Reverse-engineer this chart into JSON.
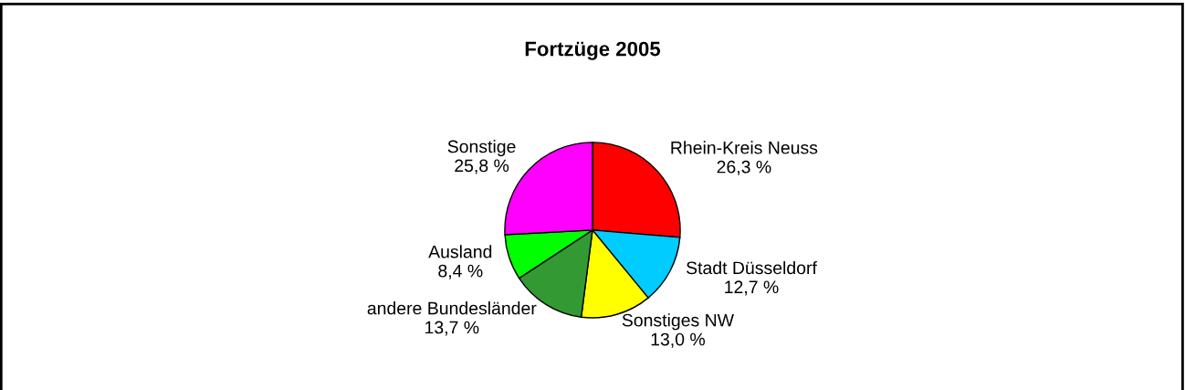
{
  "chart_data": {
    "type": "pie",
    "title": "Fortzüge 2005",
    "categories": [
      "Rhein-Kreis Neuss",
      "Stadt Düsseldorf",
      "Sonstiges NW",
      "andere Bundesländer",
      "Ausland",
      "Sonstige"
    ],
    "values": [
      26.3,
      12.7,
      13.0,
      13.7,
      8.4,
      25.8
    ],
    "value_labels": [
      "26,3 %",
      "12,7 %",
      "13,0 %",
      "13,7 %",
      "8,4 %",
      "25,8 %"
    ],
    "colors": [
      "#ff0000",
      "#00ccff",
      "#ffff00",
      "#339933",
      "#00ff00",
      "#ff00ff"
    ],
    "legend": false
  }
}
